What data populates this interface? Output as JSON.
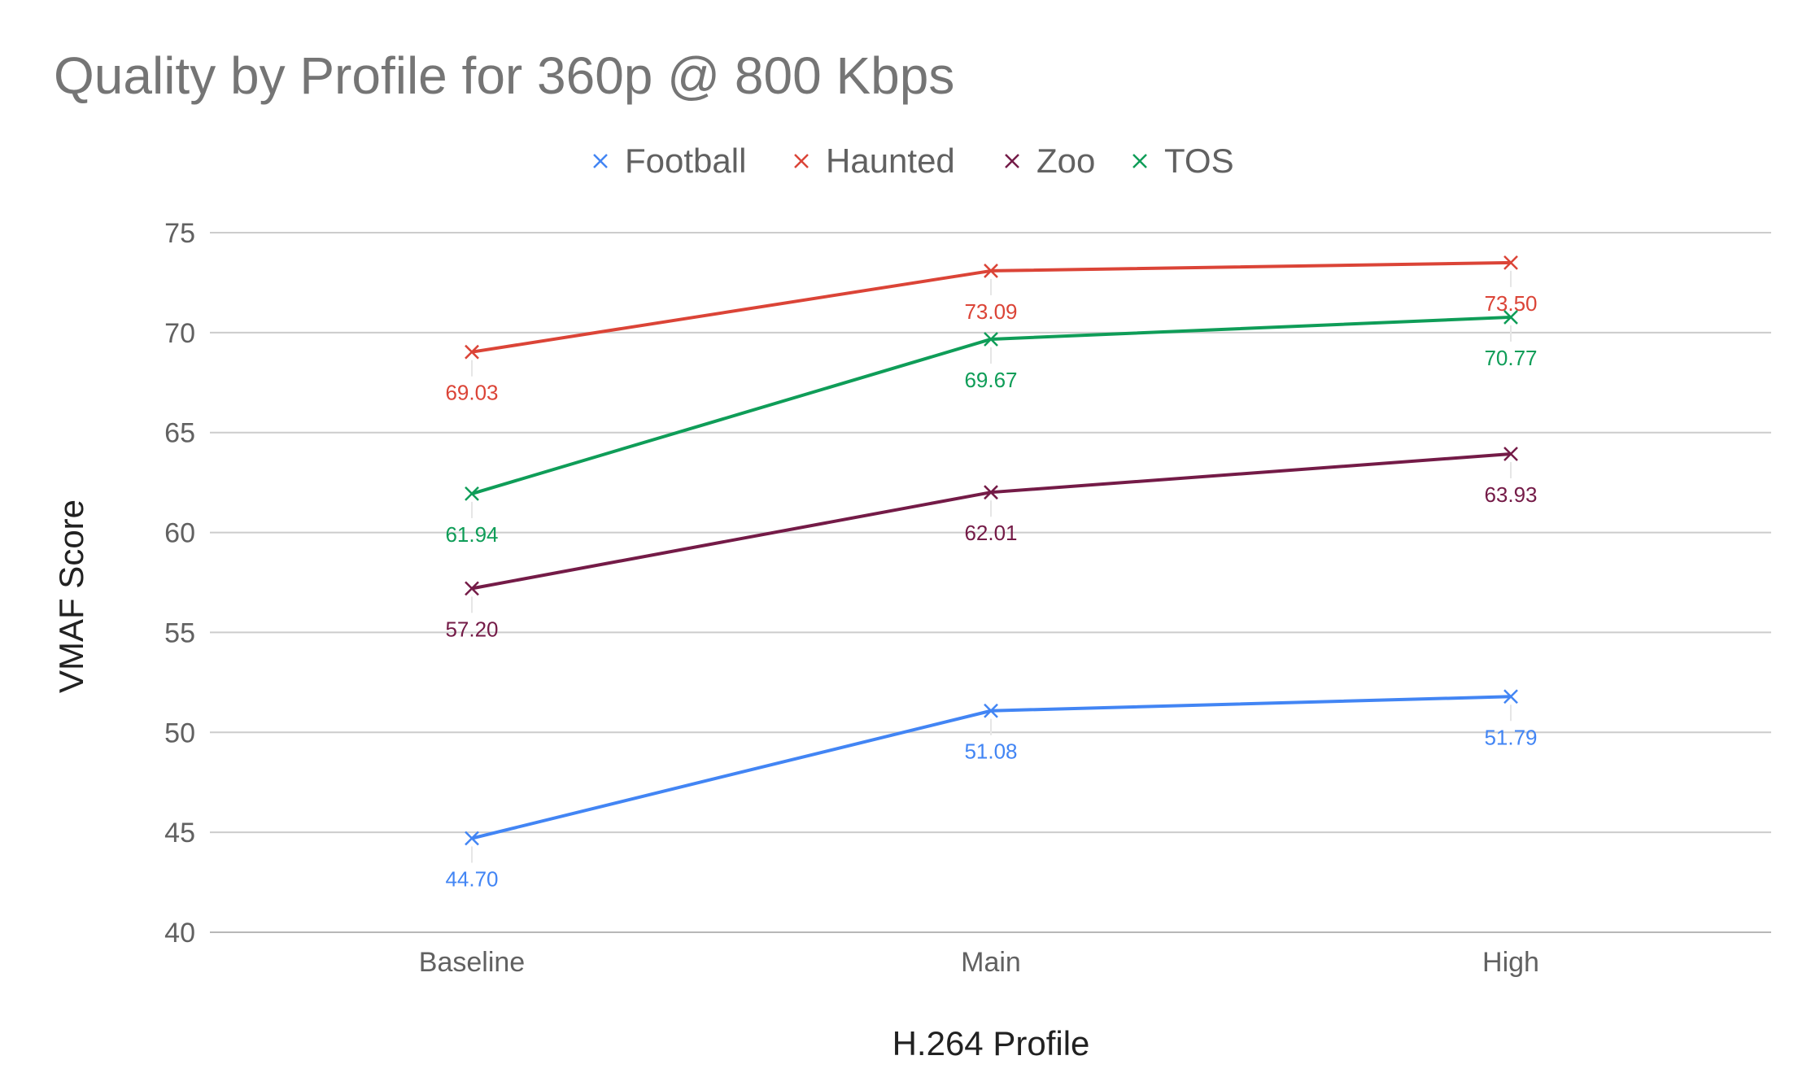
{
  "chart_data": {
    "type": "line",
    "title": "Quality by Profile for 360p @ 800 Kbps",
    "xlabel": "H.264 Profile",
    "ylabel": "VMAF Score",
    "categories": [
      "Baseline",
      "Main",
      "High"
    ],
    "ylim": [
      40,
      75
    ],
    "yticks": [
      40,
      45,
      50,
      55,
      60,
      65,
      70,
      75
    ],
    "grid": true,
    "legend_position": "top",
    "series": [
      {
        "name": "Football",
        "color": "#4285f4",
        "values": [
          44.7,
          51.08,
          51.79
        ],
        "labels": [
          "44.70",
          "51.08",
          "51.79"
        ]
      },
      {
        "name": "Haunted",
        "color": "#db4437",
        "values": [
          69.03,
          73.09,
          73.5
        ],
        "labels": [
          "69.03",
          "73.09",
          "73.50"
        ]
      },
      {
        "name": "Zoo",
        "color": "#741b47",
        "values": [
          57.2,
          62.01,
          63.93
        ],
        "labels": [
          "57.20",
          "62.01",
          "63.93"
        ]
      },
      {
        "name": "TOS",
        "color": "#0f9d58",
        "values": [
          61.94,
          69.67,
          70.77
        ],
        "labels": [
          "61.94",
          "69.67",
          "70.77"
        ]
      }
    ]
  }
}
